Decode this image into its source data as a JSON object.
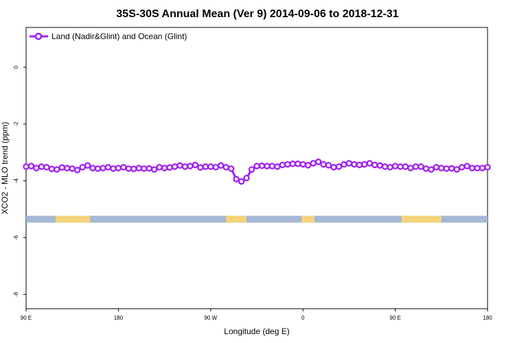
{
  "chart_data": {
    "type": "line",
    "title": "35S-30S Annual Mean (Ver 9)   2014-09-06 to 2018-12-31",
    "xlabel": "Longitude (deg E)",
    "ylabel": "XCO2 - MLO trend (ppm)",
    "xlim": [
      90,
      450
    ],
    "ylim": [
      -8.5,
      1.4
    ],
    "x_ticks": [
      {
        "value": 90,
        "label": "90 E"
      },
      {
        "value": 162,
        "label": "180"
      },
      {
        "value": 234,
        "label": "90 W"
      },
      {
        "value": 306,
        "label": "0"
      },
      {
        "value": 378,
        "label": "90 E"
      },
      {
        "value": 450,
        "label": "180"
      }
    ],
    "y_ticks": [
      {
        "value": 0,
        "label": "0"
      },
      {
        "value": -2,
        "label": "-2"
      },
      {
        "value": -4,
        "label": "-4"
      },
      {
        "value": -6,
        "label": "-6"
      },
      {
        "value": -8,
        "label": "-8"
      }
    ],
    "legend": {
      "position": "top-left",
      "label": "Land (Nadir&Glint) and Ocean (Glint)"
    },
    "series": [
      {
        "name": "Land (Nadir&Glint) and Ocean (Glint)",
        "color": "#a020f0",
        "x": [
          90,
          94,
          98,
          102,
          106,
          110,
          114,
          118,
          122,
          126,
          130,
          134,
          138,
          142,
          146,
          150,
          154,
          158,
          162,
          166,
          170,
          174,
          178,
          182,
          186,
          190,
          194,
          198,
          202,
          206,
          210,
          214,
          218,
          222,
          226,
          230,
          234,
          238,
          242,
          246,
          250,
          254,
          258,
          262,
          266,
          270,
          274,
          278,
          282,
          286,
          290,
          294,
          298,
          302,
          306,
          310,
          314,
          318,
          322,
          326,
          330,
          334,
          338,
          342,
          346,
          350,
          354,
          358,
          362,
          366,
          370,
          374,
          378,
          382,
          386,
          390,
          394,
          398,
          402,
          406,
          410,
          414,
          418,
          422,
          426,
          430,
          434,
          438,
          442,
          446,
          450
        ],
        "values": [
          -3.5,
          -3.48,
          -3.55,
          -3.5,
          -3.52,
          -3.58,
          -3.6,
          -3.53,
          -3.55,
          -3.57,
          -3.62,
          -3.52,
          -3.46,
          -3.55,
          -3.57,
          -3.55,
          -3.52,
          -3.57,
          -3.55,
          -3.52,
          -3.57,
          -3.58,
          -3.55,
          -3.57,
          -3.56,
          -3.6,
          -3.52,
          -3.55,
          -3.53,
          -3.5,
          -3.46,
          -3.5,
          -3.48,
          -3.44,
          -3.53,
          -3.5,
          -3.5,
          -3.52,
          -3.46,
          -3.52,
          -3.57,
          -3.94,
          -4.02,
          -3.9,
          -3.6,
          -3.48,
          -3.47,
          -3.48,
          -3.48,
          -3.5,
          -3.44,
          -3.42,
          -3.4,
          -3.4,
          -3.42,
          -3.45,
          -3.38,
          -3.33,
          -3.42,
          -3.45,
          -3.52,
          -3.5,
          -3.42,
          -3.38,
          -3.42,
          -3.44,
          -3.42,
          -3.38,
          -3.44,
          -3.46,
          -3.5,
          -3.52,
          -3.48,
          -3.5,
          -3.5,
          -3.55,
          -3.5,
          -3.5,
          -3.57,
          -3.6,
          -3.52,
          -3.55,
          -3.57,
          -3.56,
          -3.6,
          -3.52,
          -3.48,
          -3.55,
          -3.55,
          -3.55,
          -3.52
        ]
      }
    ],
    "surface_strip": {
      "y_value": -5.35,
      "ocean_color": "#a5b8d6",
      "land_color": "#f5d37a",
      "land_segments": [
        [
          113,
          140
        ],
        [
          246,
          262
        ],
        [
          305,
          315
        ],
        [
          383,
          414
        ]
      ]
    }
  }
}
